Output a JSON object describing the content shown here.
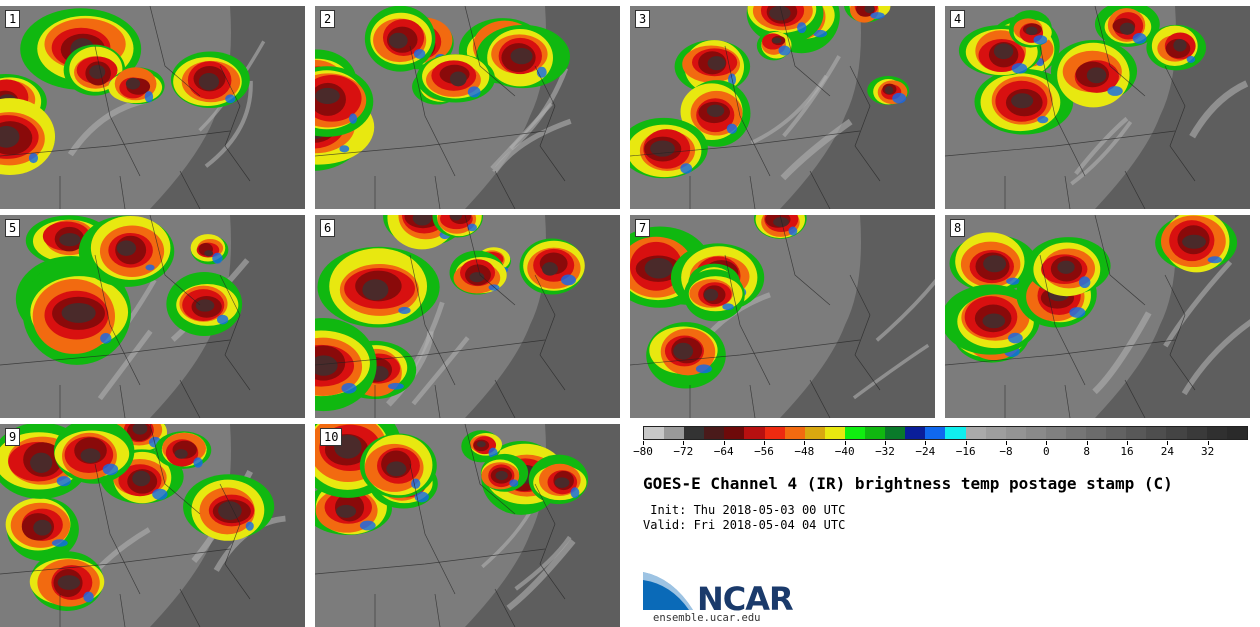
{
  "panels": [
    {
      "label": "1"
    },
    {
      "label": "2"
    },
    {
      "label": "3"
    },
    {
      "label": "4"
    },
    {
      "label": "5"
    },
    {
      "label": "6"
    },
    {
      "label": "7"
    },
    {
      "label": "8"
    },
    {
      "label": "9"
    },
    {
      "label": "10"
    }
  ],
  "colorbar": {
    "colors": [
      "#c8c8c8",
      "#9a9a9a",
      "#333333",
      "#4a1a1a",
      "#6e0a0a",
      "#b81010",
      "#ee2a10",
      "#f26a10",
      "#d8a810",
      "#e8e810",
      "#10ee10",
      "#10b810",
      "#0a7a2a",
      "#0a1e9a",
      "#1068ee",
      "#10eeee",
      "#aaaaaa",
      "#9e9e9e",
      "#949494",
      "#8a8a8a",
      "#808080",
      "#767676",
      "#6c6c6c",
      "#626262",
      "#585858",
      "#4e4e4e",
      "#444444",
      "#3a3a3a",
      "#303030",
      "#2a2a2a"
    ],
    "tick_labels": [
      "−80",
      "−72",
      "−64",
      "−56",
      "−48",
      "−40",
      "−32",
      "−24",
      "−16",
      "−8",
      "0",
      "8",
      "16",
      "24",
      "32"
    ]
  },
  "title": "GOES-E Channel 4 (IR) brightness temp postage stamp (C)",
  "init": " Init: Thu 2018-05-03 00 UTC",
  "valid": "Valid: Fri 2018-05-04 04 UTC",
  "logo_text": "NCAR",
  "url": "ensemble.ucar.edu"
}
